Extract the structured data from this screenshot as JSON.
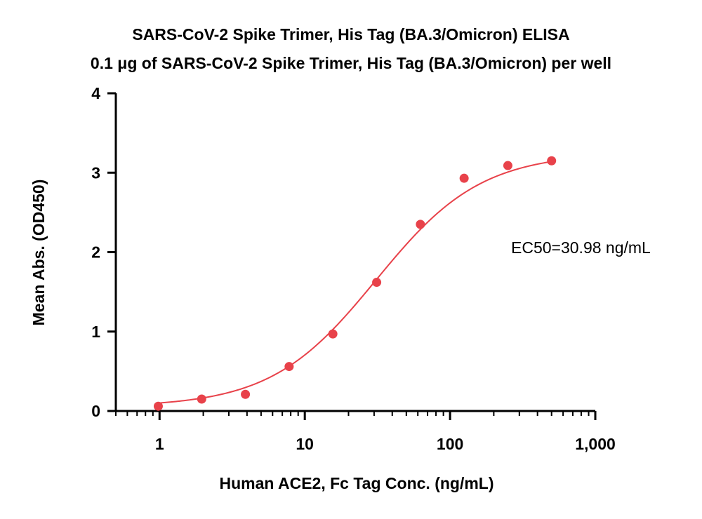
{
  "chart_data": {
    "type": "scatter",
    "title_lines": [
      "SARS-CoV-2 Spike Trimer, His Tag (BA.3/Omicron) ELISA",
      "0.1 μg of SARS-CoV-2 Spike Trimer, His Tag (BA.3/Omicron) per well"
    ],
    "xlabel": "Human ACE2, Fc Tag Conc. (ng/mL)",
    "ylabel": "Mean Abs. (OD450)",
    "xscale": "log",
    "xlim": [
      0.5,
      1000
    ],
    "ylim": [
      0,
      4
    ],
    "x_ticks": [
      {
        "value": 1,
        "label": "1"
      },
      {
        "value": 10,
        "label": "10"
      },
      {
        "value": 100,
        "label": "100"
      },
      {
        "value": 1000,
        "label": "1,000"
      }
    ],
    "y_ticks": [
      {
        "value": 0,
        "label": "0"
      },
      {
        "value": 1,
        "label": "1"
      },
      {
        "value": 2,
        "label": "2"
      },
      {
        "value": 3,
        "label": "3"
      },
      {
        "value": 4,
        "label": "4"
      }
    ],
    "points": {
      "x": [
        0.98,
        1.95,
        3.9,
        7.8,
        15.6,
        31.25,
        62.5,
        125,
        250,
        500
      ],
      "y": [
        0.06,
        0.15,
        0.21,
        0.56,
        0.97,
        1.62,
        2.35,
        2.93,
        3.09,
        3.15
      ]
    },
    "fit": {
      "model": "4PL",
      "bottom": 0.05,
      "top": 3.25,
      "ec50": 30.98,
      "hill": 1.2
    },
    "annotation": "EC50=30.98 ng/mL",
    "color": "#e8424a",
    "grid": false
  }
}
